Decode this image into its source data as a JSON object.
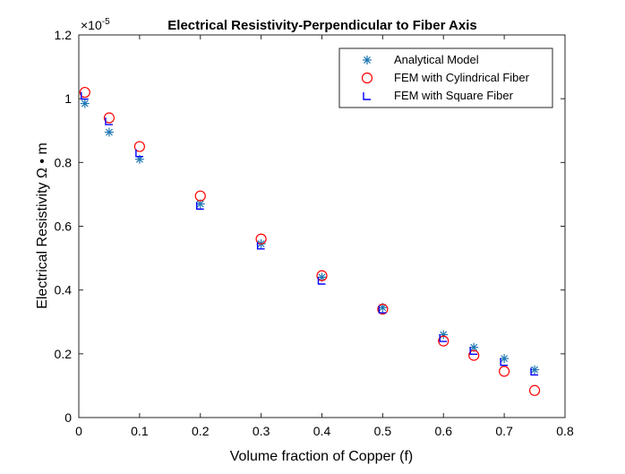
{
  "chart_data": {
    "type": "scatter",
    "title": "Electrical Resistivity-Perpendicular to Fiber Axis",
    "xlabel": "Volume fraction of Copper (f)",
    "ylabel": "Electrical Resistivity Ω • m",
    "y_exponent_label": "×10",
    "y_exponent_power": "-5",
    "xlim": [
      0,
      0.8
    ],
    "ylim": [
      0,
      1.2
    ],
    "xticks": [
      "0",
      "0.1",
      "0.2",
      "0.3",
      "0.4",
      "0.5",
      "0.6",
      "0.7",
      "0.8"
    ],
    "yticks": [
      "0",
      "0.2",
      "0.4",
      "0.6",
      "0.8",
      "1",
      "1.2"
    ],
    "grid": false,
    "legend_position": "top-right",
    "series": [
      {
        "name": "Analytical Model",
        "marker": "asterisk",
        "color": "#1f77b4",
        "x": [
          0.01,
          0.05,
          0.1,
          0.2,
          0.3,
          0.4,
          0.5,
          0.6,
          0.65,
          0.7,
          0.75
        ],
        "y": [
          0.985,
          0.895,
          0.81,
          0.67,
          0.545,
          0.44,
          0.345,
          0.26,
          0.22,
          0.185,
          0.15
        ]
      },
      {
        "name": "FEM with Cylindrical Fiber",
        "marker": "circle",
        "color": "#ff0000",
        "x": [
          0.01,
          0.05,
          0.1,
          0.2,
          0.3,
          0.4,
          0.5,
          0.6,
          0.65,
          0.7,
          0.75
        ],
        "y": [
          1.02,
          0.94,
          0.85,
          0.695,
          0.56,
          0.445,
          0.34,
          0.24,
          0.195,
          0.145,
          0.085
        ]
      },
      {
        "name": "FEM with Square Fiber",
        "marker": "square-bracket",
        "color": "#0000ff",
        "x": [
          0.01,
          0.05,
          0.1,
          0.2,
          0.3,
          0.4,
          0.5,
          0.6,
          0.65,
          0.7,
          0.75
        ],
        "y": [
          1.01,
          0.93,
          0.83,
          0.665,
          0.54,
          0.43,
          0.34,
          0.25,
          0.21,
          0.175,
          0.145
        ]
      }
    ]
  }
}
